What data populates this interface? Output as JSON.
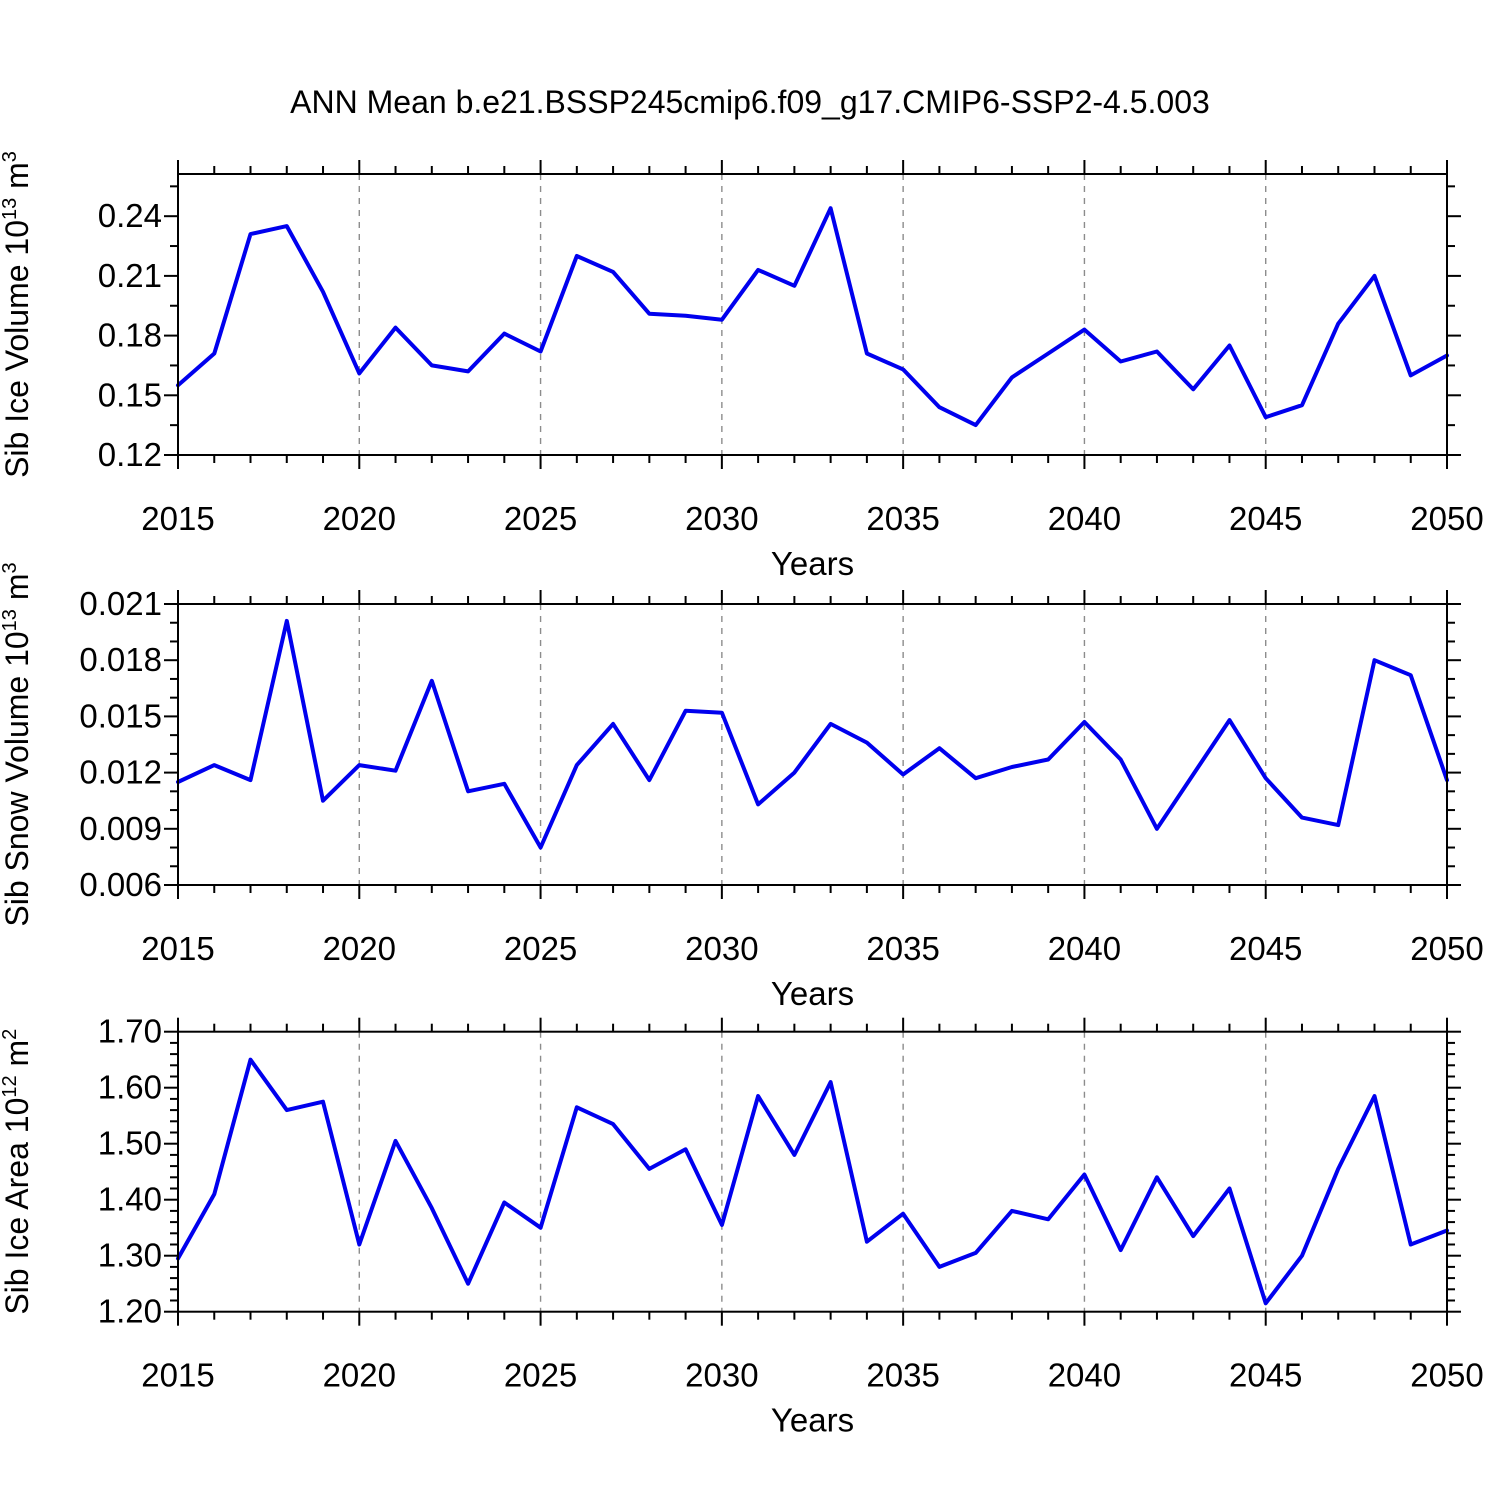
{
  "title": "ANN Mean b.e21.BSSP245cmip6.f09_g17.CMIP6-SSP2-4.5.003",
  "style": {
    "line_color": "#0000EE",
    "grid_color": "#8c8c8c",
    "axis_color": "#000000"
  },
  "chart_data": [
    {
      "type": "line",
      "name": "sib-ice-volume",
      "ylabel_segments": [
        {
          "t": "Sib Ice Volume 10"
        },
        {
          "t": "13",
          "sup": true
        },
        {
          "t": " m"
        },
        {
          "t": "3",
          "sup": true
        }
      ],
      "xlabel": "Years",
      "xlim": [
        2015,
        2050
      ],
      "xticks_major": [
        2015,
        2020,
        2025,
        2030,
        2035,
        2040,
        2045,
        2050
      ],
      "xminor_step": 1,
      "grid_years": [
        2020,
        2025,
        2030,
        2035,
        2040,
        2045
      ],
      "ylim": [
        0.12,
        0.2612
      ],
      "yticks": [
        0.12,
        0.15,
        0.18,
        0.21,
        0.24
      ],
      "ytick_labels": [
        "0.12",
        "0.15",
        "0.18",
        "0.21",
        "0.24"
      ],
      "yminor_step": 0.015,
      "years": [
        2015,
        2016,
        2017,
        2018,
        2019,
        2020,
        2021,
        2022,
        2023,
        2024,
        2025,
        2026,
        2027,
        2028,
        2029,
        2030,
        2031,
        2032,
        2033,
        2034,
        2035,
        2036,
        2037,
        2038,
        2039,
        2040,
        2041,
        2042,
        2043,
        2044,
        2045,
        2046,
        2047,
        2048,
        2049,
        2050
      ],
      "values": [
        0.155,
        0.171,
        0.231,
        0.235,
        0.202,
        0.161,
        0.184,
        0.165,
        0.162,
        0.181,
        0.172,
        0.22,
        0.212,
        0.191,
        0.19,
        0.188,
        0.213,
        0.205,
        0.244,
        0.171,
        0.163,
        0.144,
        0.135,
        0.159,
        0.171,
        0.183,
        0.167,
        0.172,
        0.153,
        0.175,
        0.139,
        0.145,
        0.186,
        0.21,
        0.16,
        0.17
      ]
    },
    {
      "type": "line",
      "name": "sib-snow-volume",
      "ylabel_segments": [
        {
          "t": "Sib Snow Volume 10"
        },
        {
          "t": "13",
          "sup": true
        },
        {
          "t": " m"
        },
        {
          "t": "3",
          "sup": true
        }
      ],
      "xlabel": "Years",
      "xlim": [
        2015,
        2050
      ],
      "xticks_major": [
        2015,
        2020,
        2025,
        2030,
        2035,
        2040,
        2045,
        2050
      ],
      "xminor_step": 1,
      "grid_years": [
        2020,
        2025,
        2030,
        2035,
        2040,
        2045
      ],
      "ylim": [
        0.006,
        0.021
      ],
      "yticks": [
        0.006,
        0.009,
        0.012,
        0.015,
        0.018,
        0.021
      ],
      "ytick_labels": [
        "0.006",
        "0.009",
        "0.012",
        "0.015",
        "0.018",
        "0.021"
      ],
      "yminor_step": 0.001,
      "years": [
        2015,
        2016,
        2017,
        2018,
        2019,
        2020,
        2021,
        2022,
        2023,
        2024,
        2025,
        2026,
        2027,
        2028,
        2029,
        2030,
        2031,
        2032,
        2033,
        2034,
        2035,
        2036,
        2037,
        2038,
        2039,
        2040,
        2041,
        2042,
        2043,
        2044,
        2045,
        2046,
        2047,
        2048,
        2049,
        2050
      ],
      "values": [
        0.0115,
        0.0124,
        0.0116,
        0.0201,
        0.0105,
        0.0124,
        0.0121,
        0.0169,
        0.011,
        0.0114,
        0.008,
        0.0124,
        0.0146,
        0.0116,
        0.0153,
        0.0152,
        0.0103,
        0.012,
        0.0146,
        0.0136,
        0.0119,
        0.0133,
        0.0117,
        0.0123,
        0.0127,
        0.0147,
        0.0127,
        0.009,
        0.0119,
        0.0148,
        0.0117,
        0.0096,
        0.0092,
        0.018,
        0.0172,
        0.0116
      ]
    },
    {
      "type": "line",
      "name": "sib-ice-area",
      "ylabel_segments": [
        {
          "t": "Sib Ice Area 10"
        },
        {
          "t": "12",
          "sup": true
        },
        {
          "t": " m"
        },
        {
          "t": "2",
          "sup": true
        }
      ],
      "xlabel": "Years",
      "xlim": [
        2015,
        2050
      ],
      "xticks_major": [
        2015,
        2020,
        2025,
        2030,
        2035,
        2040,
        2045,
        2050
      ],
      "xminor_step": 1,
      "grid_years": [
        2020,
        2025,
        2030,
        2035,
        2040,
        2045
      ],
      "ylim": [
        1.2,
        1.7
      ],
      "yticks": [
        1.2,
        1.3,
        1.4,
        1.5,
        1.6,
        1.7
      ],
      "ytick_labels": [
        "1.20",
        "1.30",
        "1.40",
        "1.50",
        "1.60",
        "1.70"
      ],
      "yminor_step": 0.02,
      "years": [
        2015,
        2016,
        2017,
        2018,
        2019,
        2020,
        2021,
        2022,
        2023,
        2024,
        2025,
        2026,
        2027,
        2028,
        2029,
        2030,
        2031,
        2032,
        2033,
        2034,
        2035,
        2036,
        2037,
        2038,
        2039,
        2040,
        2041,
        2042,
        2043,
        2044,
        2045,
        2046,
        2047,
        2048,
        2049,
        2050
      ],
      "values": [
        1.295,
        1.41,
        1.65,
        1.56,
        1.575,
        1.32,
        1.505,
        1.385,
        1.25,
        1.395,
        1.35,
        1.565,
        1.535,
        1.455,
        1.49,
        1.355,
        1.585,
        1.48,
        1.61,
        1.325,
        1.375,
        1.28,
        1.305,
        1.38,
        1.365,
        1.445,
        1.31,
        1.44,
        1.335,
        1.42,
        1.215,
        1.3,
        1.455,
        1.585,
        1.32,
        1.345
      ]
    }
  ]
}
